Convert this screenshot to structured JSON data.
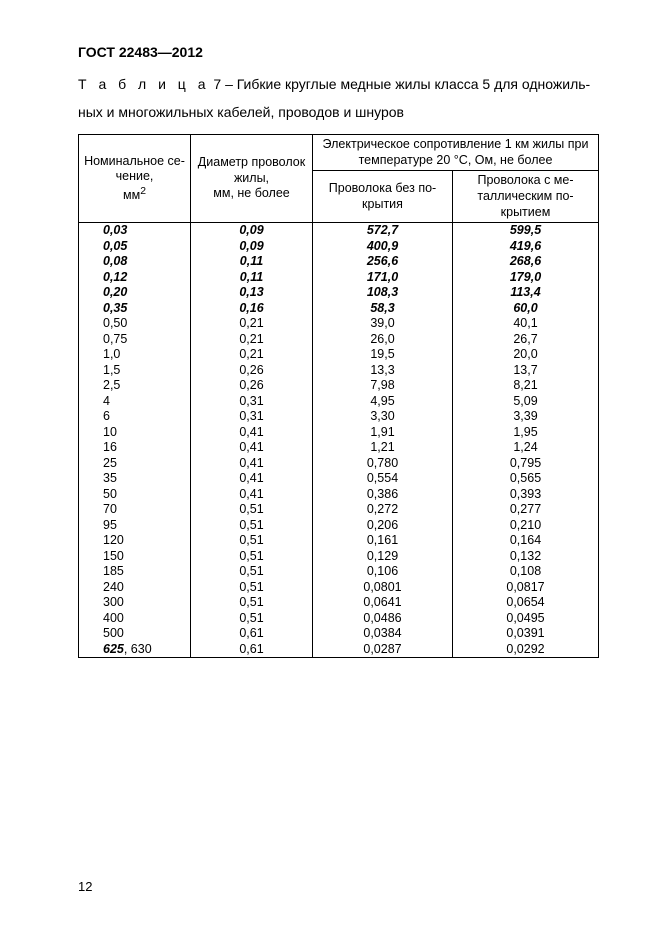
{
  "doc": {
    "gost": "ГОСТ  22483—2012",
    "caption_prefix": "Т а б л и ц а",
    "caption_rest": " 7 – Гибкие круглые медные жилы класса 5 для одножиль-ных и многожильных кабелей, проводов и шнуров",
    "page_number": "12"
  },
  "headers": {
    "section": "Номинальное се-чение,",
    "section_unit": "мм",
    "diameter": "Диаметр проволок жилы,",
    "diameter_unit": "мм, не более",
    "resistance_group": "Электрическое сопротивление 1 км жилы при температуре 20 °С, Ом, не более",
    "res_no_coat": "Проволока без по-крытия",
    "res_metal_coat": "Проволока с ме-таллическим по-крытием"
  },
  "rows": [
    {
      "sec": "0,03",
      "dia": "0,09",
      "r1": "572,7",
      "r2": "599,5",
      "bi": true
    },
    {
      "sec": "0,05",
      "dia": "0,09",
      "r1": "400,9",
      "r2": "419,6",
      "bi": true
    },
    {
      "sec": "0,08",
      "dia": "0,11",
      "r1": "256,6",
      "r2": "268,6",
      "bi": true
    },
    {
      "sec": "0,12",
      "dia": "0,11",
      "r1": "171,0",
      "r2": "179,0",
      "bi": true
    },
    {
      "sec": "0,20",
      "dia": "0,13",
      "r1": "108,3",
      "r2": "113,4",
      "bi": true
    },
    {
      "sec": "0,35",
      "dia": "0,16",
      "r1": "58,3",
      "r2": "60,0",
      "bi": true
    },
    {
      "sec": "0,50",
      "dia": "0,21",
      "r1": "39,0",
      "r2": "40,1",
      "bi": false
    },
    {
      "sec": "0,75",
      "dia": "0,21",
      "r1": "26,0",
      "r2": "26,7",
      "bi": false
    },
    {
      "sec": "1,0",
      "dia": "0,21",
      "r1": "19,5",
      "r2": "20,0",
      "bi": false
    },
    {
      "sec": "1,5",
      "dia": "0,26",
      "r1": "13,3",
      "r2": "13,7",
      "bi": false
    },
    {
      "sec": "2,5",
      "dia": "0,26",
      "r1": "7,98",
      "r2": "8,21",
      "bi": false
    },
    {
      "sec": "4",
      "dia": "0,31",
      "r1": "4,95",
      "r2": "5,09",
      "bi": false
    },
    {
      "sec": "6",
      "dia": "0,31",
      "r1": "3,30",
      "r2": "3,39",
      "bi": false
    },
    {
      "sec": "10",
      "dia": "0,41",
      "r1": "1,91",
      "r2": "1,95",
      "bi": false
    },
    {
      "sec": "16",
      "dia": "0,41",
      "r1": "1,21",
      "r2": "1,24",
      "bi": false
    },
    {
      "sec": "25",
      "dia": "0,41",
      "r1": "0,780",
      "r2": "0,795",
      "bi": false
    },
    {
      "sec": "35",
      "dia": "0,41",
      "r1": "0,554",
      "r2": "0,565",
      "bi": false
    },
    {
      "sec": "50",
      "dia": "0,41",
      "r1": "0,386",
      "r2": "0,393",
      "bi": false
    },
    {
      "sec": "70",
      "dia": "0,51",
      "r1": "0,272",
      "r2": "0,277",
      "bi": false
    },
    {
      "sec": "95",
      "dia": "0,51",
      "r1": "0,206",
      "r2": "0,210",
      "bi": false
    },
    {
      "sec": "120",
      "dia": "0,51",
      "r1": "0,161",
      "r2": "0,164",
      "bi": false
    },
    {
      "sec": "150",
      "dia": "0,51",
      "r1": "0,129",
      "r2": "0,132",
      "bi": false
    },
    {
      "sec": "185",
      "dia": "0,51",
      "r1": "0,106",
      "r2": "0,108",
      "bi": false
    },
    {
      "sec": "240",
      "dia": "0,51",
      "r1": "0,0801",
      "r2": "0,0817",
      "bi": false
    },
    {
      "sec": "300",
      "dia": "0,51",
      "r1": "0,0641",
      "r2": "0,0654",
      "bi": false
    },
    {
      "sec": "400",
      "dia": "0,51",
      "r1": "0,0486",
      "r2": "0,0495",
      "bi": false
    },
    {
      "sec": "500",
      "dia": "0,61",
      "r1": "0,0384",
      "r2": "0,0391",
      "bi": false
    },
    {
      "sec_html": "<span class=\"bi\">625</span>, 630",
      "dia": "0,61",
      "r1": "0,0287",
      "r2": "0,0292",
      "bi": false,
      "sec_mixed": true
    }
  ]
}
